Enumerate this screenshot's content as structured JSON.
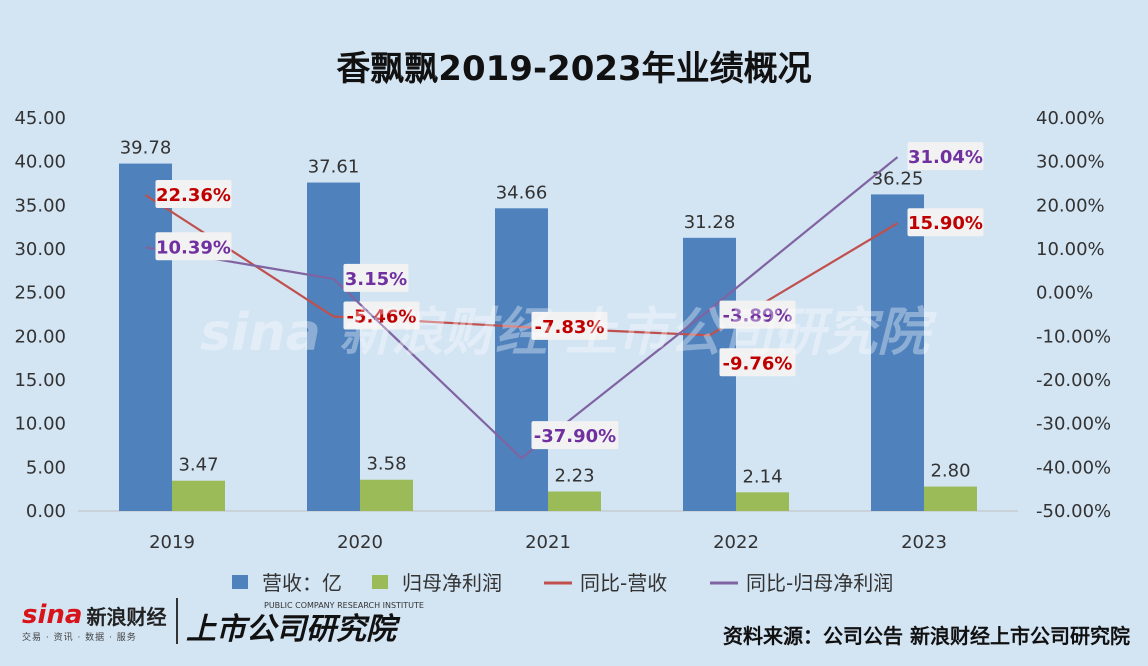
{
  "chart_data": {
    "type": "bar",
    "title": "香飘飘2019-2023年业绩概况",
    "categories": [
      "2019",
      "2020",
      "2021",
      "2022",
      "2023"
    ],
    "y_left": {
      "ylim": [
        0,
        45
      ],
      "ticks": [
        "0.00",
        "5.00",
        "10.00",
        "15.00",
        "20.00",
        "25.00",
        "30.00",
        "35.00",
        "40.00",
        "45.00"
      ]
    },
    "y_right": {
      "ylim": [
        -50,
        40
      ],
      "ticks": [
        "-50.00%",
        "-40.00%",
        "-30.00%",
        "-20.00%",
        "-10.00%",
        "0.00%",
        "10.00%",
        "20.00%",
        "30.00%",
        "40.00%"
      ]
    },
    "series": [
      {
        "name": "营收：亿",
        "kind": "bar",
        "axis": "left",
        "color": "#4f81bd",
        "values": [
          39.78,
          37.61,
          34.66,
          31.28,
          36.25
        ],
        "labels": [
          "39.78",
          "37.61",
          "34.66",
          "31.28",
          "36.25"
        ]
      },
      {
        "name": "归母净利润",
        "kind": "bar",
        "axis": "left",
        "color": "#9bbb59",
        "values": [
          3.47,
          3.58,
          2.23,
          2.14,
          2.8
        ],
        "labels": [
          "3.47",
          "3.58",
          "2.23",
          "2.14",
          "2.80"
        ]
      },
      {
        "name": "同比-营收",
        "kind": "line",
        "axis": "right",
        "color": "#c0504d",
        "label_color": "#c00000",
        "values": [
          22.36,
          -5.46,
          -7.83,
          -9.76,
          15.9
        ],
        "labels": [
          "22.36%",
          "-5.46%",
          "-7.83%",
          "-9.76%",
          "15.90%"
        ]
      },
      {
        "name": "同比-归母净利润",
        "kind": "line",
        "axis": "right",
        "color": "#8064a2",
        "label_color": "#7030a0",
        "values": [
          10.39,
          3.15,
          -37.9,
          -3.89,
          31.04
        ],
        "labels": [
          "10.39%",
          "3.15%",
          "-37.90%",
          "-3.89%",
          "31.04%"
        ]
      }
    ],
    "legend": "bottom",
    "grid": false
  },
  "footer": {
    "logo_sina": "sina",
    "logo_name": "新浪财经",
    "logo_sub": "交易 · 资讯 · 数据 · 服务",
    "logo_institute": "上市公司研究院",
    "logo_institute_sub": "PUBLIC COMPANY RESEARCH INSTITUTE",
    "source": "资料来源：公司公告 新浪财经上市公司研究院"
  },
  "watermark": "sina 新浪财经 上市公司研究院"
}
